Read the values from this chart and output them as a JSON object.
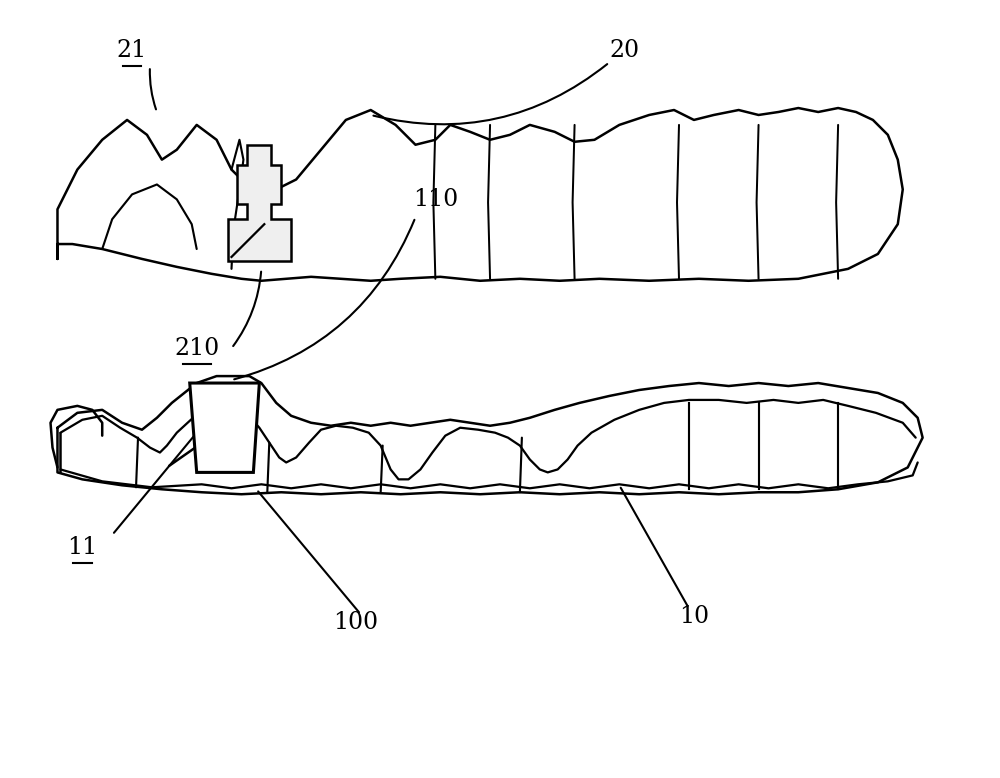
{
  "bg_color": "#ffffff",
  "line_color": "#000000",
  "lw": 1.8,
  "fig_width": 10.0,
  "fig_height": 7.78,
  "dpi": 100
}
